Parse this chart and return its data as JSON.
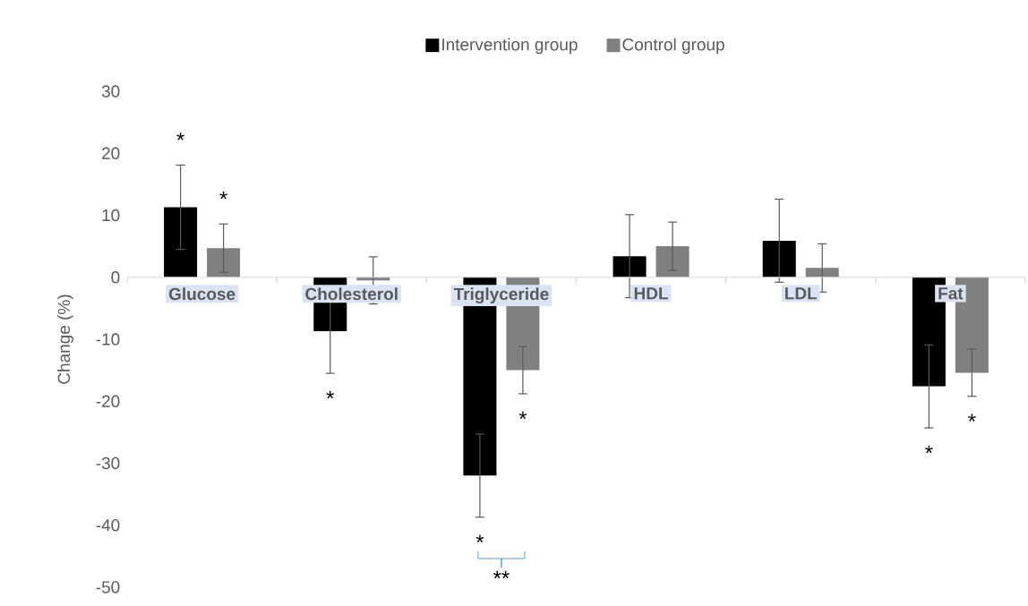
{
  "chart_data": {
    "type": "bar",
    "ylabel": "Change (%)",
    "categories": [
      "Glucose",
      "Cholesterol",
      "Triglyceride",
      "HDL",
      "LDL",
      "Fat"
    ],
    "series": [
      {
        "name": "Intervention group",
        "color": "#000000",
        "values": [
          11.3,
          -8.7,
          -32.0,
          3.4,
          5.9,
          -17.6
        ],
        "errors": [
          6.8,
          6.8,
          6.7,
          6.7,
          6.7,
          6.7
        ]
      },
      {
        "name": "Control group",
        "color": "#808080",
        "values": [
          4.7,
          -0.5,
          -15.0,
          5.0,
          1.5,
          -15.4
        ],
        "errors": [
          3.9,
          3.8,
          3.8,
          3.9,
          3.9,
          3.8
        ]
      }
    ],
    "ylim": [
      -50,
      30
    ],
    "yticks": [
      -50,
      -40,
      -30,
      -20,
      -10,
      0,
      10,
      20,
      30
    ],
    "legend": "top",
    "grid": false,
    "annotations": [
      "*",
      "*",
      "*",
      "*",
      "*",
      "**",
      "*",
      "*"
    ]
  }
}
